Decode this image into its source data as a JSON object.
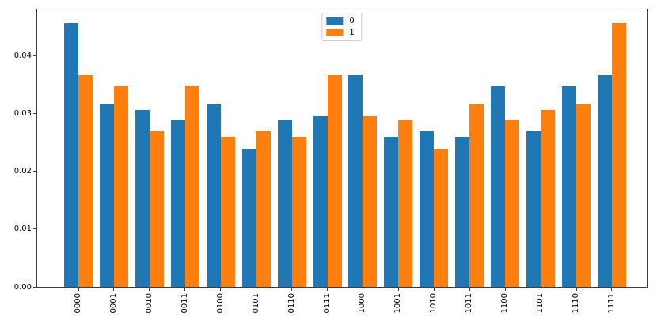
{
  "chart_data": {
    "type": "bar",
    "title": "",
    "xlabel": "",
    "ylabel": "",
    "categories": [
      "0000",
      "0001",
      "0010",
      "0011",
      "0100",
      "0101",
      "0110",
      "0111",
      "1000",
      "1001",
      "1010",
      "1011",
      "1100",
      "1101",
      "1110",
      "1111"
    ],
    "series": [
      {
        "name": "0",
        "color": "#1f77b4",
        "values": [
          0.0457,
          0.0316,
          0.0306,
          0.0288,
          0.0316,
          0.0239,
          0.0288,
          0.0296,
          0.0367,
          0.026,
          0.027,
          0.026,
          0.0347,
          0.027,
          0.0347,
          0.0367
        ]
      },
      {
        "name": "1",
        "color": "#ff7f0e",
        "values": [
          0.0367,
          0.0347,
          0.027,
          0.0347,
          0.026,
          0.027,
          0.026,
          0.0367,
          0.0296,
          0.0288,
          0.0239,
          0.0316,
          0.0288,
          0.0306,
          0.0316,
          0.0457
        ]
      }
    ],
    "ylim": [
      0,
      0.048
    ],
    "y_tick_values": [
      0,
      0.01,
      0.02,
      0.03,
      0.04
    ],
    "y_tick_labels": [
      "0.00",
      "0.01",
      "0.02",
      "0.03",
      "0.04"
    ],
    "x_tick_rotation_deg": 90,
    "grid": false,
    "legend": {
      "position": "upper-center"
    },
    "axis_color": "#3c3c3c",
    "plot_bg": "#ffffff"
  }
}
